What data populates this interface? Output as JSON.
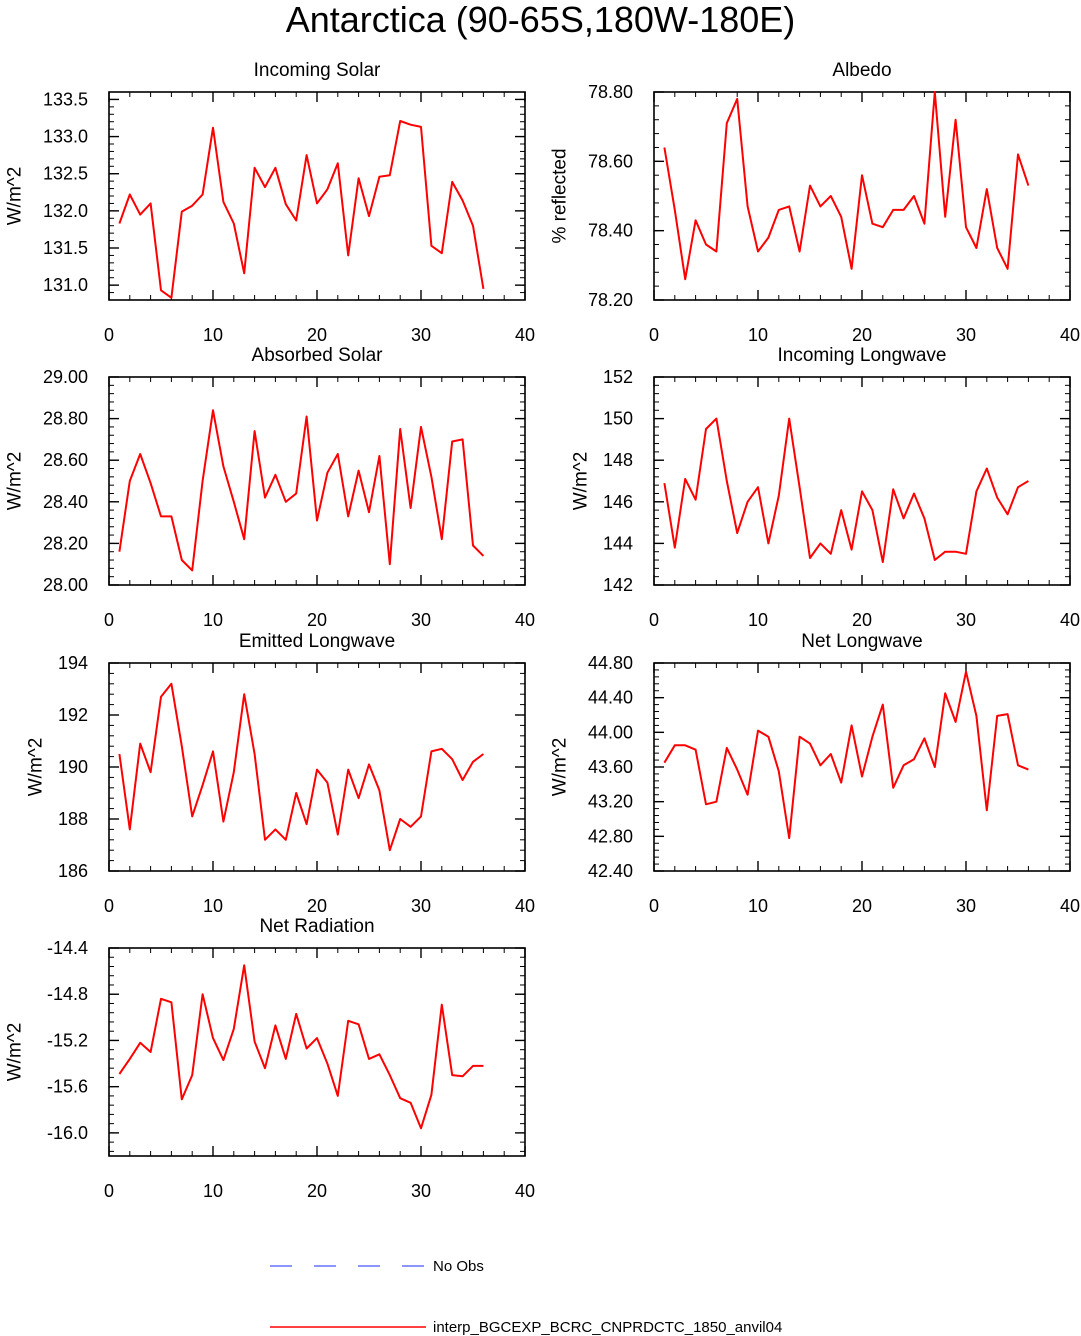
{
  "title": "Antarctica (90-65S,180W-180E)",
  "colors": {
    "model": "#ff0000",
    "obs": "#6670ff",
    "axis": "#000000"
  },
  "legend": [
    {
      "label": "No Obs",
      "color": "#6670ff",
      "style": "dashed"
    },
    {
      "label": "interp_BGCEXP_BCRC_CNPRDCTC_1850_anvil04",
      "color": "#ff0000",
      "style": "solid"
    }
  ],
  "chart_data": [
    {
      "type": "line",
      "title": "Incoming Solar",
      "ylabel": "W/m^2",
      "xlabel": "",
      "xlim": [
        0,
        40
      ],
      "ylim": [
        130.8,
        133.6
      ],
      "xticks": [
        0,
        10,
        20,
        30,
        40
      ],
      "xtick_labels": [
        "0",
        "10",
        "20",
        "30",
        "40"
      ],
      "yticks": [
        131.0,
        131.5,
        132.0,
        132.5,
        133.0,
        133.5
      ],
      "ytick_labels": [
        "131.0",
        "131.5",
        "132.0",
        "132.5",
        "133.0",
        "133.5"
      ],
      "series": [
        {
          "name": "interp_BGCEXP_BCRC_CNPRDCTC_1850_anvil04",
          "x": [
            1,
            2,
            3,
            4,
            5,
            6,
            7,
            8,
            9,
            10,
            11,
            12,
            13,
            14,
            15,
            16,
            17,
            18,
            19,
            20,
            21,
            22,
            23,
            24,
            25,
            26,
            27,
            28,
            29,
            30,
            31,
            32,
            33,
            34,
            35,
            36
          ],
          "values": [
            131.83,
            132.22,
            131.95,
            132.1,
            130.93,
            130.83,
            131.99,
            132.07,
            132.22,
            133.12,
            132.12,
            131.83,
            131.16,
            132.58,
            132.32,
            132.58,
            132.09,
            131.87,
            132.75,
            132.1,
            132.29,
            132.64,
            131.4,
            132.44,
            131.93,
            132.46,
            132.48,
            133.21,
            133.16,
            133.13,
            131.53,
            131.43,
            132.39,
            132.14,
            131.8,
            130.95
          ]
        }
      ]
    },
    {
      "type": "line",
      "title": "Albedo",
      "ylabel": "% reflected",
      "xlabel": "",
      "xlim": [
        0,
        40
      ],
      "ylim": [
        78.2,
        78.8
      ],
      "xticks": [
        0,
        10,
        20,
        30,
        40
      ],
      "xtick_labels": [
        "0",
        "10",
        "20",
        "30",
        "40"
      ],
      "yticks": [
        78.2,
        78.4,
        78.6,
        78.8
      ],
      "ytick_labels": [
        "78.20",
        "78.40",
        "78.60",
        "78.80"
      ],
      "series": [
        {
          "name": "interp_BGCEXP_BCRC_CNPRDCTC_1850_anvil04",
          "x": [
            1,
            2,
            3,
            4,
            5,
            6,
            7,
            8,
            9,
            10,
            11,
            12,
            13,
            14,
            15,
            16,
            17,
            18,
            19,
            20,
            21,
            22,
            23,
            24,
            25,
            26,
            27,
            28,
            29,
            30,
            31,
            32,
            33,
            34,
            35,
            36
          ],
          "values": [
            78.64,
            78.46,
            78.26,
            78.43,
            78.36,
            78.34,
            78.71,
            78.78,
            78.47,
            78.34,
            78.38,
            78.46,
            78.47,
            78.34,
            78.53,
            78.47,
            78.5,
            78.44,
            78.29,
            78.56,
            78.42,
            78.41,
            78.46,
            78.46,
            78.5,
            78.42,
            78.8,
            78.44,
            78.72,
            78.41,
            78.35,
            78.52,
            78.35,
            78.29,
            78.62,
            78.53
          ]
        }
      ]
    },
    {
      "type": "line",
      "title": "Absorbed Solar",
      "ylabel": "W/m^2",
      "xlabel": "",
      "xlim": [
        0,
        40
      ],
      "ylim": [
        28.0,
        29.0
      ],
      "xticks": [
        0,
        10,
        20,
        30,
        40
      ],
      "xtick_labels": [
        "0",
        "10",
        "20",
        "30",
        "40"
      ],
      "yticks": [
        28.0,
        28.2,
        28.4,
        28.6,
        28.8,
        29.0
      ],
      "ytick_labels": [
        "28.00",
        "28.20",
        "28.40",
        "28.60",
        "28.80",
        "29.00"
      ],
      "series": [
        {
          "name": "interp_BGCEXP_BCRC_CNPRDCTC_1850_anvil04",
          "x": [
            1,
            2,
            3,
            4,
            5,
            6,
            7,
            8,
            9,
            10,
            11,
            12,
            13,
            14,
            15,
            16,
            17,
            18,
            19,
            20,
            21,
            22,
            23,
            24,
            25,
            26,
            27,
            28,
            29,
            30,
            31,
            32,
            33,
            34,
            35,
            36
          ],
          "values": [
            28.16,
            28.5,
            28.63,
            28.49,
            28.33,
            28.33,
            28.12,
            28.07,
            28.5,
            28.84,
            28.57,
            28.4,
            28.22,
            28.74,
            28.42,
            28.53,
            28.4,
            28.44,
            28.81,
            28.31,
            28.54,
            28.63,
            28.33,
            28.55,
            28.35,
            28.62,
            28.1,
            28.75,
            28.37,
            28.76,
            28.52,
            28.22,
            28.69,
            28.7,
            28.19,
            28.14
          ]
        }
      ]
    },
    {
      "type": "line",
      "title": "Incoming Longwave",
      "ylabel": "W/m^2",
      "xlabel": "",
      "xlim": [
        0,
        40
      ],
      "ylim": [
        142,
        152
      ],
      "xticks": [
        0,
        10,
        20,
        30,
        40
      ],
      "xtick_labels": [
        "0",
        "10",
        "20",
        "30",
        "40"
      ],
      "yticks": [
        142,
        144,
        146,
        148,
        150,
        152
      ],
      "ytick_labels": [
        "142",
        "144",
        "146",
        "148",
        "150",
        "152"
      ],
      "series": [
        {
          "name": "interp_BGCEXP_BCRC_CNPRDCTC_1850_anvil04",
          "x": [
            1,
            2,
            3,
            4,
            5,
            6,
            7,
            8,
            9,
            10,
            11,
            12,
            13,
            14,
            15,
            16,
            17,
            18,
            19,
            20,
            21,
            22,
            23,
            24,
            25,
            26,
            27,
            28,
            29,
            30,
            31,
            32,
            33,
            34,
            35,
            36
          ],
          "values": [
            146.9,
            143.8,
            147.1,
            146.1,
            149.5,
            150.0,
            147.0,
            144.5,
            146.0,
            146.7,
            144.0,
            146.3,
            150.0,
            146.7,
            143.3,
            144.0,
            143.5,
            145.6,
            143.7,
            146.5,
            145.6,
            143.1,
            146.6,
            145.2,
            146.4,
            145.2,
            143.2,
            143.6,
            143.6,
            143.5,
            146.5,
            147.6,
            146.2,
            145.4,
            146.7,
            147.0
          ]
        }
      ]
    },
    {
      "type": "line",
      "title": "Emitted Longwave",
      "ylabel": "W/m^2",
      "xlabel": "",
      "xlim": [
        0,
        40
      ],
      "ylim": [
        186,
        194
      ],
      "xticks": [
        0,
        10,
        20,
        30,
        40
      ],
      "xtick_labels": [
        "0",
        "10",
        "20",
        "30",
        "40"
      ],
      "yticks": [
        186,
        188,
        190,
        192,
        194
      ],
      "ytick_labels": [
        "186",
        "188",
        "190",
        "192",
        "194"
      ],
      "series": [
        {
          "name": "interp_BGCEXP_BCRC_CNPRDCTC_1850_anvil04",
          "x": [
            1,
            2,
            3,
            4,
            5,
            6,
            7,
            8,
            9,
            10,
            11,
            12,
            13,
            14,
            15,
            16,
            17,
            18,
            19,
            20,
            21,
            22,
            23,
            24,
            25,
            26,
            27,
            28,
            29,
            30,
            31,
            32,
            33,
            34,
            35,
            36
          ],
          "values": [
            190.5,
            187.6,
            190.9,
            189.8,
            192.7,
            193.2,
            190.8,
            188.1,
            189.3,
            190.6,
            187.9,
            189.8,
            192.8,
            190.5,
            187.2,
            187.6,
            187.2,
            189.0,
            187.8,
            189.9,
            189.4,
            187.4,
            189.9,
            188.8,
            190.1,
            189.1,
            186.8,
            188.0,
            187.7,
            188.1,
            190.6,
            190.7,
            190.3,
            189.5,
            190.2,
            190.5
          ]
        }
      ]
    },
    {
      "type": "line",
      "title": "Net Longwave",
      "ylabel": "W/m^2",
      "xlabel": "",
      "xlim": [
        0,
        40
      ],
      "ylim": [
        42.4,
        44.8
      ],
      "xticks": [
        0,
        10,
        20,
        30,
        40
      ],
      "xtick_labels": [
        "0",
        "10",
        "20",
        "30",
        "40"
      ],
      "yticks": [
        42.4,
        42.8,
        43.2,
        43.6,
        44.0,
        44.4,
        44.8
      ],
      "ytick_labels": [
        "42.40",
        "42.80",
        "43.20",
        "43.60",
        "44.00",
        "44.40",
        "44.80"
      ],
      "series": [
        {
          "name": "interp_BGCEXP_BCRC_CNPRDCTC_1850_anvil04",
          "x": [
            1,
            2,
            3,
            4,
            5,
            6,
            7,
            8,
            9,
            10,
            11,
            12,
            13,
            14,
            15,
            16,
            17,
            18,
            19,
            20,
            21,
            22,
            23,
            24,
            25,
            26,
            27,
            28,
            29,
            30,
            31,
            32,
            33,
            34,
            35,
            36
          ],
          "values": [
            43.65,
            43.85,
            43.85,
            43.8,
            43.17,
            43.2,
            43.82,
            43.57,
            43.28,
            44.02,
            43.95,
            43.55,
            42.78,
            43.95,
            43.87,
            43.62,
            43.75,
            43.42,
            44.08,
            43.49,
            43.95,
            44.32,
            43.36,
            43.62,
            43.69,
            43.93,
            43.6,
            44.45,
            44.12,
            44.7,
            44.19,
            43.1,
            44.19,
            44.21,
            43.62,
            43.57
          ]
        }
      ]
    },
    {
      "type": "line",
      "title": "Net Radiation",
      "ylabel": "W/m^2",
      "xlabel": "",
      "xlim": [
        0,
        40
      ],
      "ylim": [
        -16.2,
        -14.4
      ],
      "xticks": [
        0,
        10,
        20,
        30,
        40
      ],
      "xtick_labels": [
        "0",
        "10",
        "20",
        "30",
        "40"
      ],
      "yticks": [
        -16.0,
        -15.6,
        -15.2,
        -14.8,
        -14.4
      ],
      "ytick_labels": [
        "-16.0",
        "-15.6",
        "-15.2",
        "-14.8",
        "-14.4"
      ],
      "series": [
        {
          "name": "interp_BGCEXP_BCRC_CNPRDCTC_1850_anvil04",
          "x": [
            1,
            2,
            3,
            4,
            5,
            6,
            7,
            8,
            9,
            10,
            11,
            12,
            13,
            14,
            15,
            16,
            17,
            18,
            19,
            20,
            21,
            22,
            23,
            24,
            25,
            26,
            27,
            28,
            29,
            30,
            31,
            32,
            33,
            34,
            35,
            36
          ],
          "values": [
            -15.49,
            -15.36,
            -15.22,
            -15.3,
            -14.84,
            -14.87,
            -15.71,
            -15.5,
            -14.8,
            -15.18,
            -15.37,
            -15.1,
            -14.55,
            -15.21,
            -15.44,
            -15.07,
            -15.36,
            -14.97,
            -15.27,
            -15.18,
            -15.4,
            -15.68,
            -15.03,
            -15.06,
            -15.36,
            -15.32,
            -15.5,
            -15.7,
            -15.74,
            -15.96,
            -15.67,
            -14.89,
            -15.5,
            -15.51,
            -15.42,
            -15.42
          ]
        }
      ]
    }
  ]
}
